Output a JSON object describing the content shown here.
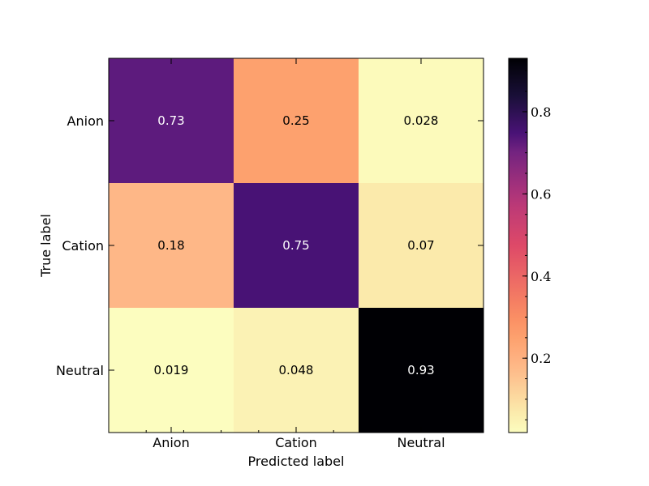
{
  "chart_data": {
    "type": "heatmap",
    "title": "",
    "xlabel": "Predicted label",
    "ylabel": "True label",
    "x_categories": [
      "Anion",
      "Cation",
      "Neutral"
    ],
    "y_categories": [
      "Anion",
      "Cation",
      "Neutral"
    ],
    "values": [
      [
        0.73,
        0.25,
        0.028
      ],
      [
        0.18,
        0.75,
        0.07
      ],
      [
        0.019,
        0.048,
        0.93
      ]
    ],
    "cell_labels": [
      [
        "0.73",
        "0.25",
        "0.028"
      ],
      [
        "0.18",
        "0.75",
        "0.07"
      ],
      [
        "0.019",
        "0.048",
        "0.93"
      ]
    ],
    "colormap": "magma_r",
    "colorbar": {
      "min": 0.019,
      "max": 0.93,
      "ticks": [
        0.2,
        0.4,
        0.6,
        0.8
      ],
      "tick_labels": [
        "0.2",
        "0.4",
        "0.6",
        "0.8"
      ]
    }
  }
}
